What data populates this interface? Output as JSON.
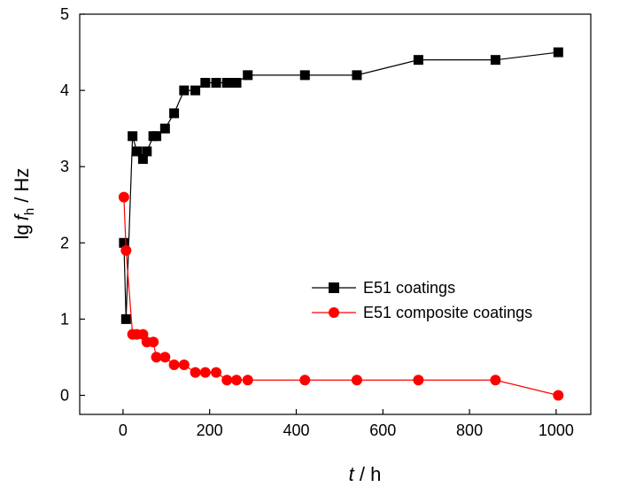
{
  "chart_data": {
    "type": "line",
    "xlabel_var": "t",
    "xlabel_unit": " / h",
    "ylabel_prefix": "lg",
    "ylabel_var": "f",
    "ylabel_sub": "h",
    "ylabel_unit": " / Hz",
    "xlim": [
      -100,
      1080
    ],
    "ylim": [
      -0.25,
      5
    ],
    "xticks": [
      0,
      200,
      400,
      600,
      800,
      1000
    ],
    "yticks": [
      0,
      1,
      2,
      3,
      4,
      5
    ],
    "grid": false,
    "legend_position": "center-right",
    "series": [
      {
        "name": "E51 coatings",
        "color": "#000000",
        "marker": "square",
        "x": [
          2,
          7,
          22,
          32,
          46,
          55,
          70,
          77,
          97,
          118,
          141,
          167,
          190,
          215,
          240,
          262,
          288,
          420,
          540,
          682,
          860,
          1005
        ],
        "y": [
          2.0,
          1.0,
          3.4,
          3.2,
          3.1,
          3.2,
          3.4,
          3.4,
          3.5,
          3.7,
          4.0,
          4.0,
          4.1,
          4.1,
          4.1,
          4.1,
          4.2,
          4.2,
          4.2,
          4.4,
          4.4,
          4.5
        ]
      },
      {
        "name": "E51 composite coatings",
        "color": "#ff0000",
        "marker": "circle",
        "x": [
          2,
          7,
          22,
          32,
          46,
          55,
          70,
          77,
          97,
          118,
          141,
          167,
          190,
          215,
          240,
          262,
          288,
          420,
          540,
          682,
          860,
          1005
        ],
        "y": [
          2.6,
          1.9,
          0.8,
          0.8,
          0.8,
          0.7,
          0.7,
          0.5,
          0.5,
          0.4,
          0.4,
          0.3,
          0.3,
          0.3,
          0.2,
          0.2,
          0.2,
          0.2,
          0.2,
          0.2,
          0.2,
          0.0
        ]
      }
    ]
  }
}
